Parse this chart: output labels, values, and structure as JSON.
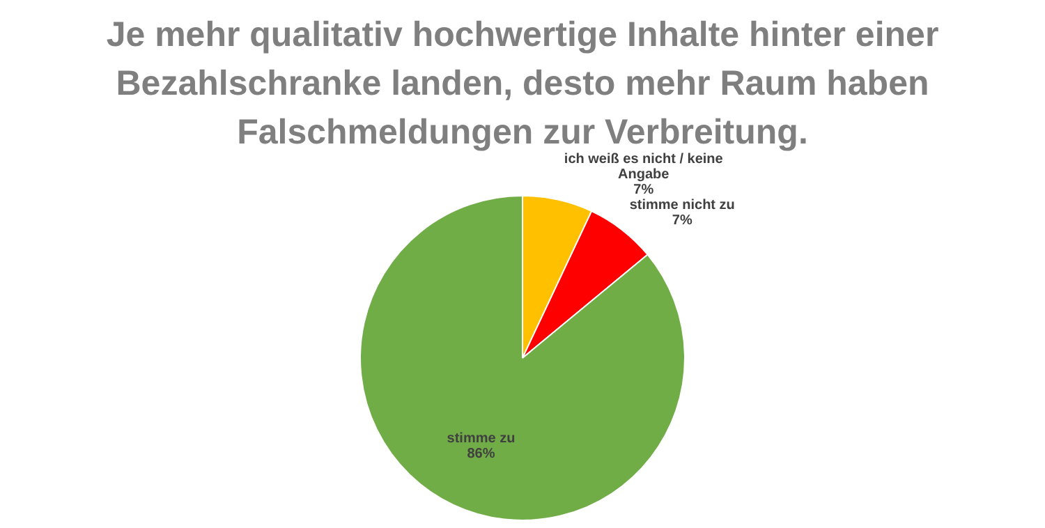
{
  "chart_data": {
    "type": "pie",
    "title": "Je mehr qualitativ hochwertige Inhalte hinter einer Bezahlschranke landen, desto mehr Raum haben Falschmeldungen zur Verbreitung.",
    "categories": [
      "ich weiß es nicht / keine Angabe",
      "stimme nicht zu",
      "stimme zu"
    ],
    "values": [
      7,
      7,
      86
    ],
    "value_labels": [
      "7%",
      "7%",
      "86%"
    ],
    "colors": [
      "#ffc000",
      "#ff0000",
      "#70ad47"
    ],
    "legend": false
  }
}
